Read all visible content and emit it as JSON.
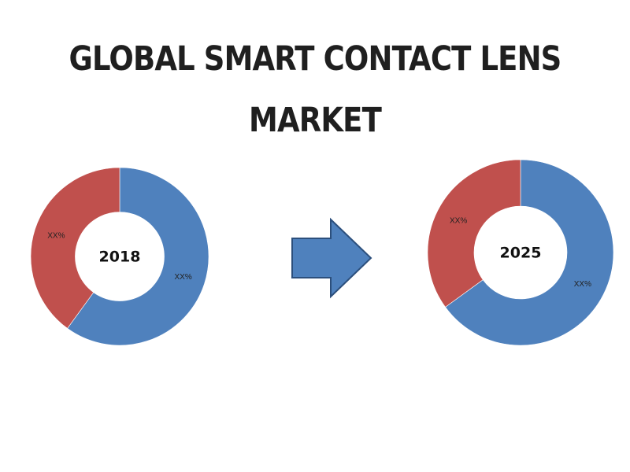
{
  "title": {
    "line1": "GLOBAL SMART CONTACT LENS",
    "line2": "MARKET"
  },
  "colors": {
    "blue": "#4f81bd",
    "red": "#c0504d",
    "arrow_fill": "#4f81bd",
    "arrow_stroke": "#2c4f7c"
  },
  "chart_data": [
    {
      "type": "pie",
      "variant": "donut",
      "center_label": "2018",
      "slices": [
        {
          "value": 60,
          "label": "XX%",
          "color": "#4f81bd"
        },
        {
          "value": 40,
          "label": "XX%",
          "color": "#c0504d"
        }
      ]
    },
    {
      "type": "pie",
      "variant": "donut",
      "center_label": "2025",
      "slices": [
        {
          "value": 65,
          "label": "XX%",
          "color": "#4f81bd"
        },
        {
          "value": 35,
          "label": "XX%",
          "color": "#c0504d"
        }
      ]
    }
  ],
  "arrow": {
    "icon": "right-arrow-icon",
    "direction": "right"
  }
}
